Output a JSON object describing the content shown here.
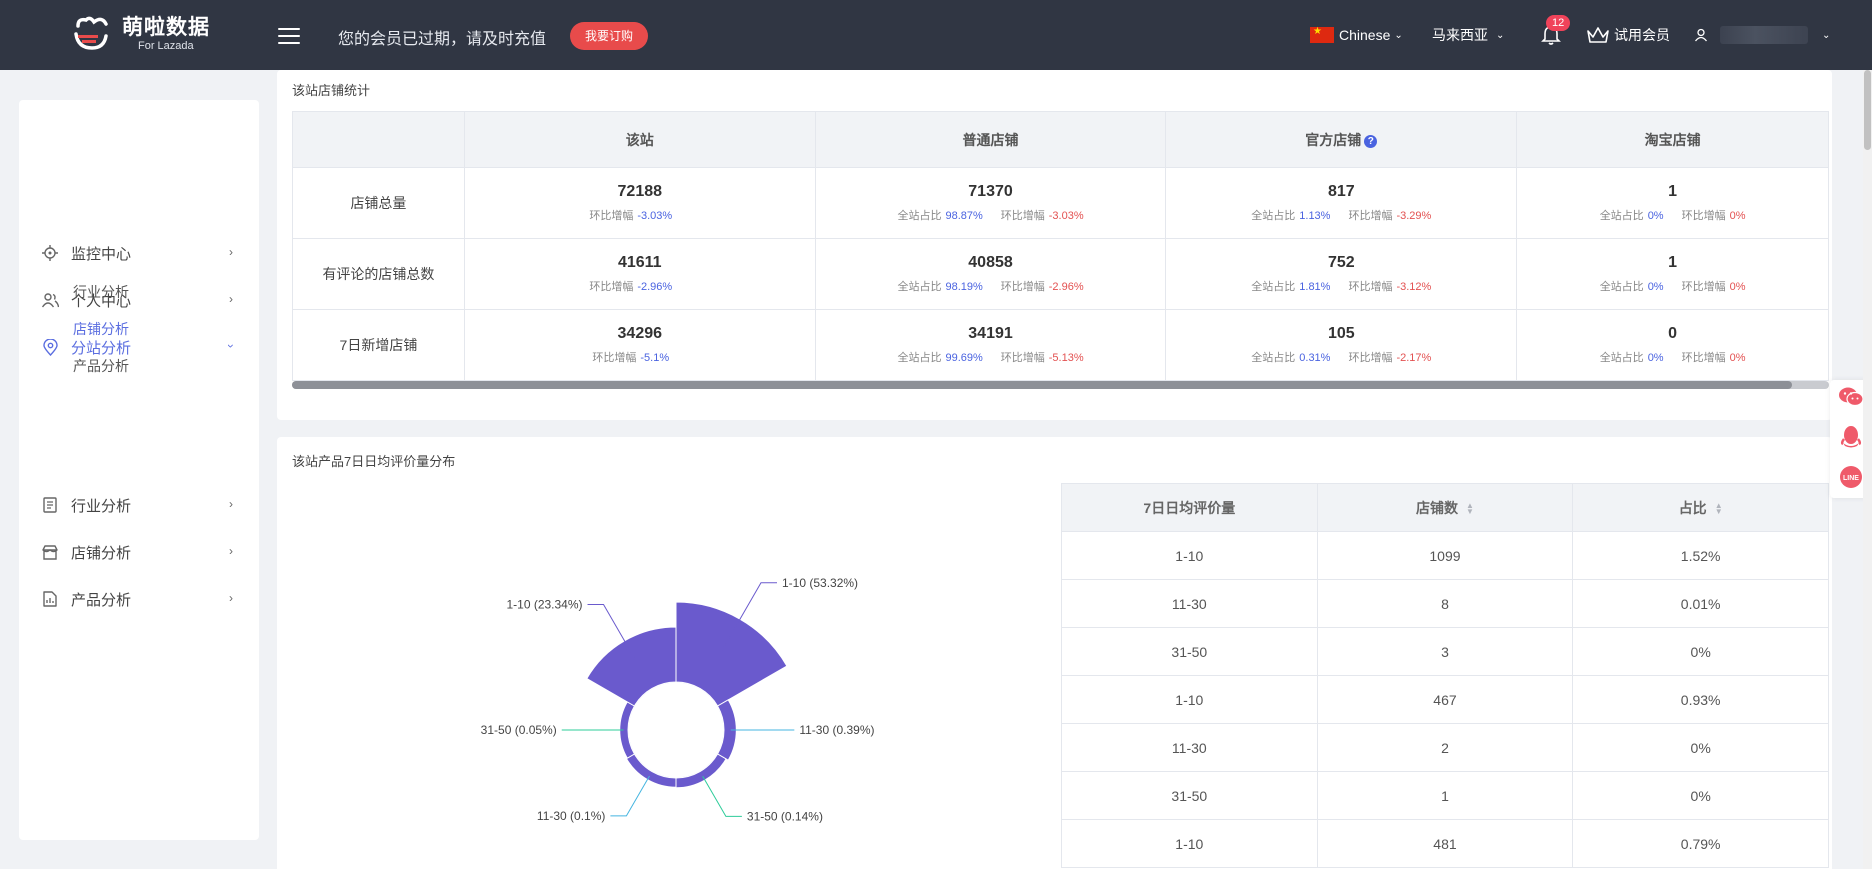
{
  "topbar": {
    "logo_cn": "萌啦数据",
    "logo_en": "For Lazada",
    "expire_notice": "您的会员已过期，请及时充值",
    "subscribe_label": "我要订购",
    "language": "Chinese",
    "region": "马来西亚",
    "notification_count": "12",
    "member_label": "试用会员"
  },
  "sidebar": {
    "items": [
      {
        "label": "监控中心",
        "icon": "crosshair-icon"
      },
      {
        "label": "个人中心",
        "icon": "users-icon"
      },
      {
        "label": "分站分析",
        "icon": "location-pin-icon"
      },
      {
        "label": "行业分析",
        "icon": "document-list-icon"
      },
      {
        "label": "店铺分析",
        "icon": "store-icon"
      },
      {
        "label": "产品分析",
        "icon": "report-icon"
      }
    ],
    "subitems": [
      "行业分析",
      "店铺分析",
      "产品分析"
    ]
  },
  "stats": {
    "title": "该站店铺统计",
    "headers": [
      "",
      "该站",
      "普通店铺",
      "官方店铺",
      "淘宝店铺"
    ],
    "labels": {
      "share": "全站占比",
      "growth": "环比增幅"
    },
    "rows": [
      {
        "label": "店铺总量",
        "site": {
          "value": "72188",
          "growth": "-3.03%"
        },
        "normal": {
          "value": "71370",
          "share": "98.87%",
          "growth": "-3.03%"
        },
        "official": {
          "value": "817",
          "share": "1.13%",
          "growth": "-3.29%"
        },
        "taobao": {
          "value": "1",
          "share": "0%",
          "growth": "0%"
        }
      },
      {
        "label": "有评论的店铺总数",
        "site": {
          "value": "41611",
          "growth": "-2.96%"
        },
        "normal": {
          "value": "40858",
          "share": "98.19%",
          "growth": "-2.96%"
        },
        "official": {
          "value": "752",
          "share": "1.81%",
          "growth": "-3.12%"
        },
        "taobao": {
          "value": "1",
          "share": "0%",
          "growth": "0%"
        }
      },
      {
        "label": "7日新增店铺",
        "site": {
          "value": "34296",
          "growth": "-5.1%"
        },
        "normal": {
          "value": "34191",
          "share": "99.69%",
          "growth": "-5.13%"
        },
        "official": {
          "value": "105",
          "share": "0.31%",
          "growth": "-2.17%"
        },
        "taobao": {
          "value": "0",
          "share": "0%",
          "growth": "0%"
        }
      }
    ]
  },
  "distribution": {
    "title": "该站产品7日日均评价量分布",
    "headers": [
      "7日日均评价量",
      "店铺数",
      "占比"
    ],
    "rows": [
      [
        "1-10",
        "1099",
        "1.52%"
      ],
      [
        "11-30",
        "8",
        "0.01%"
      ],
      [
        "31-50",
        "3",
        "0%"
      ],
      [
        "1-10",
        "467",
        "0.93%"
      ],
      [
        "11-30",
        "2",
        "0%"
      ],
      [
        "31-50",
        "1",
        "0%"
      ],
      [
        "1-10",
        "481",
        "0.79%"
      ]
    ]
  },
  "chart_data": {
    "type": "pie",
    "subtype": "rose",
    "slices": [
      {
        "label": "1-10 (53.32%)",
        "value": 53.32
      },
      {
        "label": "11-30 (0.39%)",
        "value": 0.39
      },
      {
        "label": "31-50 (0.14%)",
        "value": 0.14
      },
      {
        "label": "11-30 (0.1%)",
        "value": 0.1
      },
      {
        "label": "31-50 (0.05%)",
        "value": 0.05
      },
      {
        "label": "1-10 (23.34%)",
        "value": 23.34
      }
    ],
    "colors": {
      "bar": "#6a5acd",
      "line_a": "#45b5e0",
      "line_b": "#2ecc9a"
    }
  }
}
